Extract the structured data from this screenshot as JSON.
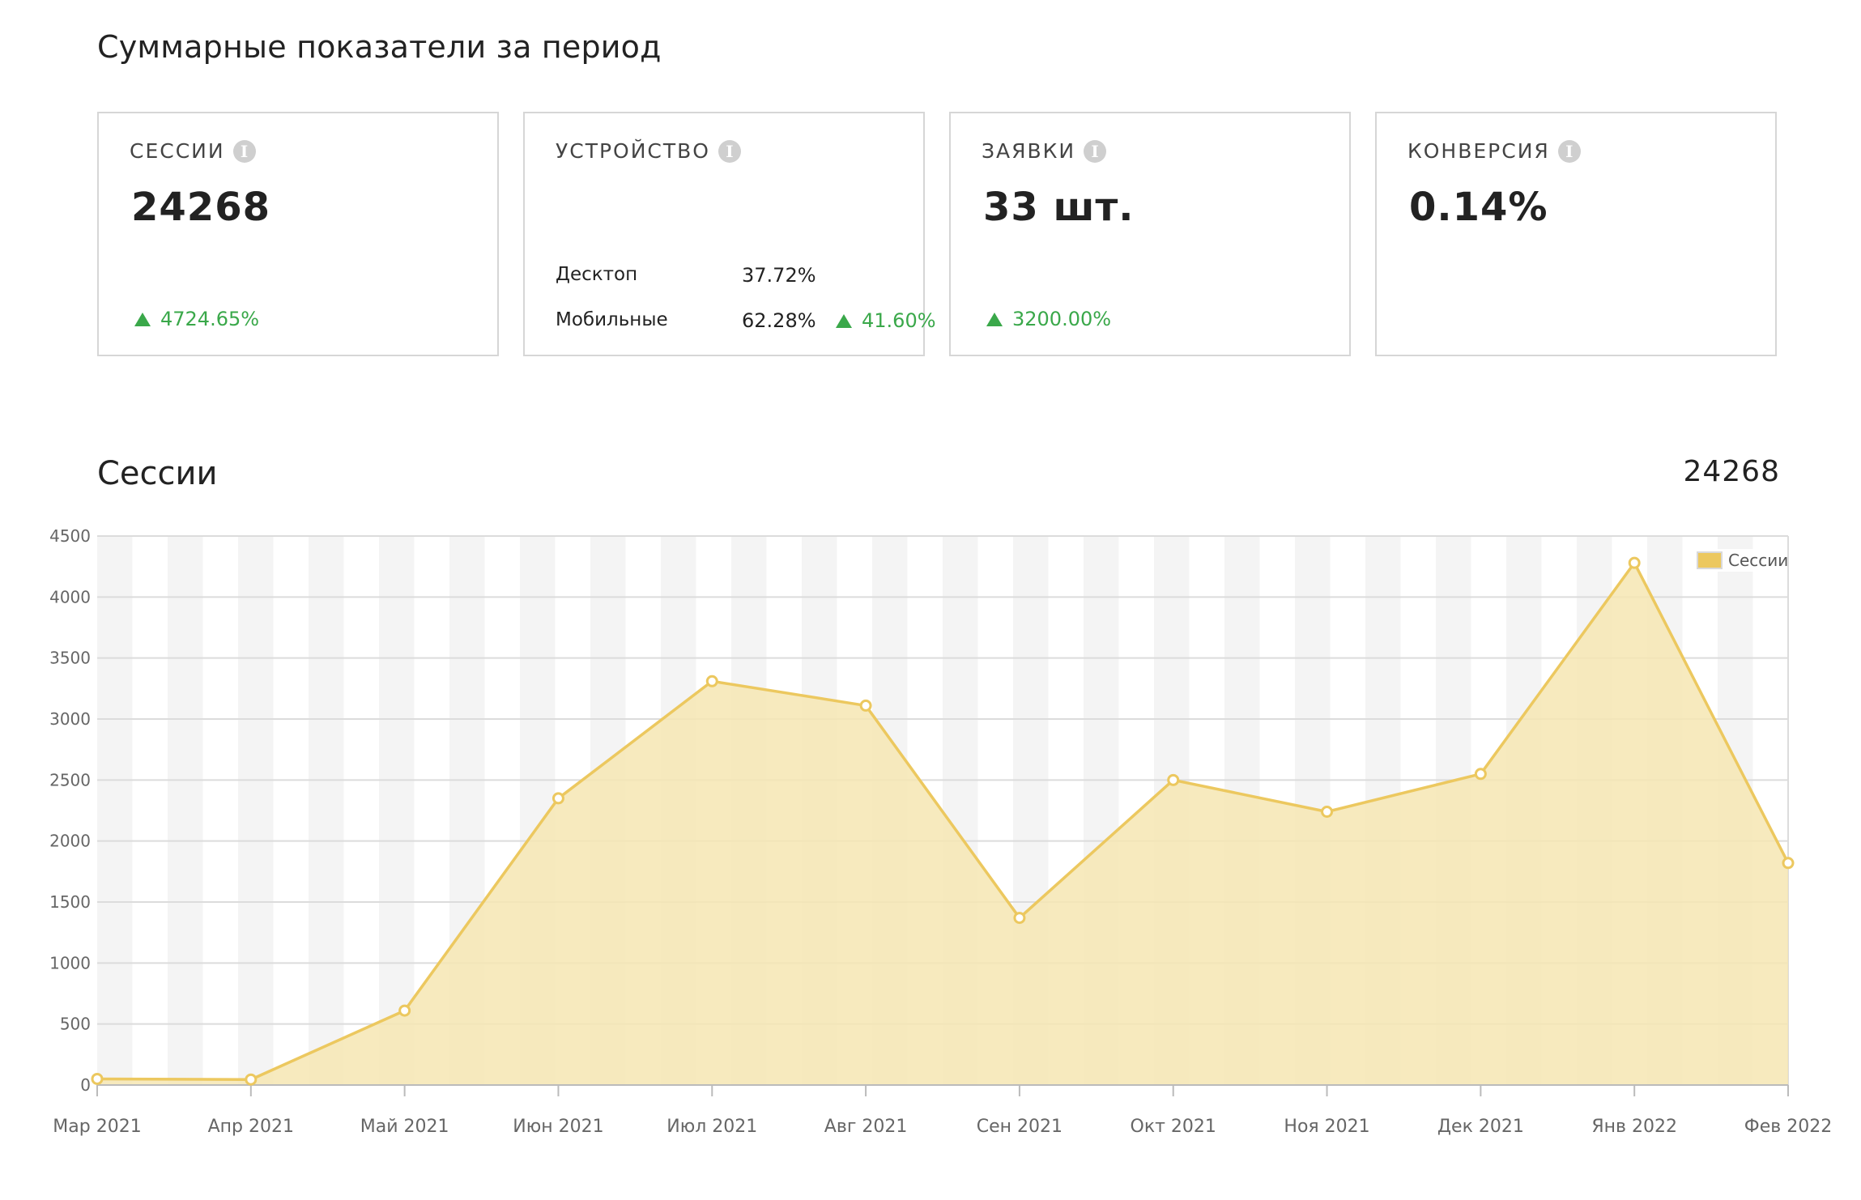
{
  "summary": {
    "title": "Суммарные показатели за период",
    "cards": {
      "sessions": {
        "label": "СЕССИИ",
        "value": "24268",
        "delta": "4724.65%"
      },
      "device": {
        "label": "УСТРОЙСТВО",
        "desktop": {
          "name": "Десктоп",
          "pct": "37.72%"
        },
        "mobile": {
          "name": "Мобильные",
          "pct": "62.28%",
          "delta": "41.60%"
        }
      },
      "leads": {
        "label": "ЗАЯВКИ",
        "value": "33 шт.",
        "delta": "3200.00%"
      },
      "conversion": {
        "label": "КОНВЕРСИЯ",
        "value": "0.14%"
      }
    }
  },
  "section": {
    "title": "Сессии",
    "total": "24268"
  },
  "colors": {
    "line": "#ecc85f",
    "fill": "#f6e6b3",
    "up": "#3aa84a",
    "legend_swatch": "#ecc85f"
  },
  "chart_data": {
    "type": "area",
    "categories": [
      "Мар 2021",
      "Апр 2021",
      "Май 2021",
      "Июн 2021",
      "Июл 2021",
      "Авг 2021",
      "Сен 2021",
      "Окт 2021",
      "Ноя 2021",
      "Дек 2021",
      "Янв 2022",
      "Фев 2022"
    ],
    "series": [
      {
        "name": "Сессии",
        "values": [
          50,
          45,
          610,
          2350,
          3310,
          3110,
          1370,
          2500,
          2240,
          2550,
          4280,
          1820
        ]
      }
    ],
    "ylim": [
      0,
      4500
    ],
    "yticks": [
      "0",
      "500",
      "1000",
      "1500",
      "2000",
      "2500",
      "3000",
      "3500",
      "4000",
      "4500"
    ],
    "legend": "top-right",
    "grid": true
  }
}
